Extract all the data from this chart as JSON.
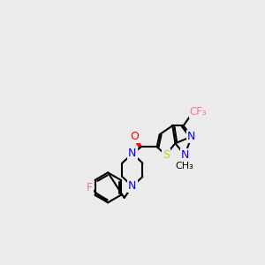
{
  "background_color": "#ebebeb",
  "bond_color": "#000000",
  "bond_width": 1.5,
  "colors": {
    "F": "#ff69b4",
    "N": "#0000ff",
    "O": "#ff0000",
    "S": "#cccc00",
    "C": "#000000",
    "methyl": "#000000"
  },
  "font_size": 9,
  "font_size_small": 8
}
